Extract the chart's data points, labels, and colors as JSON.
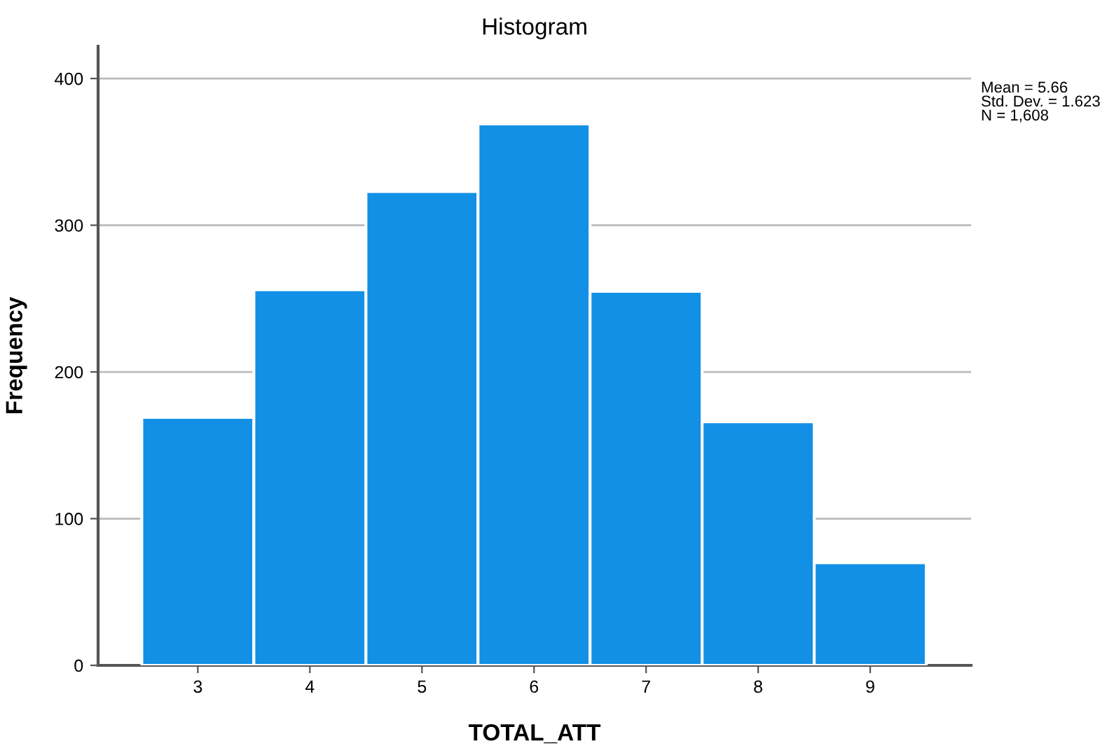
{
  "chart_data": {
    "type": "histogram",
    "title": "Histogram",
    "xlabel": "TOTAL_ATT",
    "ylabel": "Frequency",
    "bins": [
      2.5,
      3.5,
      4.5,
      5.5,
      6.5,
      7.5,
      8.5,
      9.5
    ],
    "values": [
      169,
      256,
      323,
      369,
      255,
      166,
      70
    ],
    "color": "#1290e6",
    "xlim": [
      2.11,
      9.9
    ],
    "xticks": [
      3,
      4,
      5,
      6,
      7,
      8,
      9
    ],
    "ylim": [
      0,
      422
    ],
    "yticks": [
      0,
      100,
      200,
      300,
      400
    ],
    "grid": "y",
    "legend": false,
    "annotations": [
      "Mean = 5.66\nStd. Dev. = 1.623\nN = 1,608"
    ]
  }
}
